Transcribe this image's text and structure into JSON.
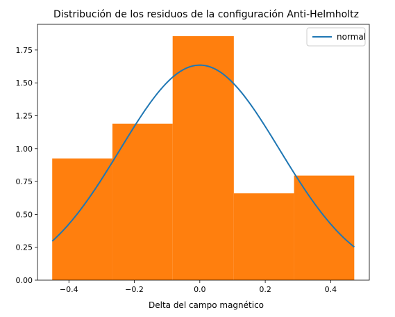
{
  "chart_data": {
    "type": "bar",
    "title": "Distribución de los residuos de la configuración Anti-Helmholtz",
    "xlabel": "Delta del campo magnético",
    "ylabel": "",
    "xlim": [
      -0.496,
      0.518
    ],
    "ylim": [
      0,
      1.945
    ],
    "xticks": [
      -0.4,
      -0.2,
      0.0,
      0.2,
      0.4
    ],
    "xtick_labels": [
      "−0.4",
      "−0.2",
      "0.0",
      "0.2",
      "0.4"
    ],
    "yticks": [
      0,
      0.25,
      0.5,
      0.75,
      1.0,
      1.25,
      1.5,
      1.75
    ],
    "ytick_labels": [
      "0.00",
      "0.25",
      "0.50",
      "0.75",
      "1.00",
      "1.25",
      "1.50",
      "1.75"
    ],
    "grid": false,
    "histogram": {
      "name": "",
      "color": "#ff7f0e",
      "bins": [
        {
          "x0": -0.451,
          "x1": -0.267,
          "height": 0.925
        },
        {
          "x0": -0.267,
          "x1": -0.083,
          "height": 1.19
        },
        {
          "x0": -0.083,
          "x1": 0.104,
          "height": 1.855
        },
        {
          "x0": 0.104,
          "x1": 0.288,
          "height": 0.66
        },
        {
          "x0": 0.288,
          "x1": 0.472,
          "height": 0.795
        }
      ]
    },
    "normal_curve": {
      "name": "normal",
      "color": "#1f77b4",
      "mean": 0.0,
      "std": 0.244,
      "x_range": [
        -0.451,
        0.472
      ]
    },
    "legend": {
      "position": "top-right",
      "entries": [
        "normal"
      ]
    }
  }
}
